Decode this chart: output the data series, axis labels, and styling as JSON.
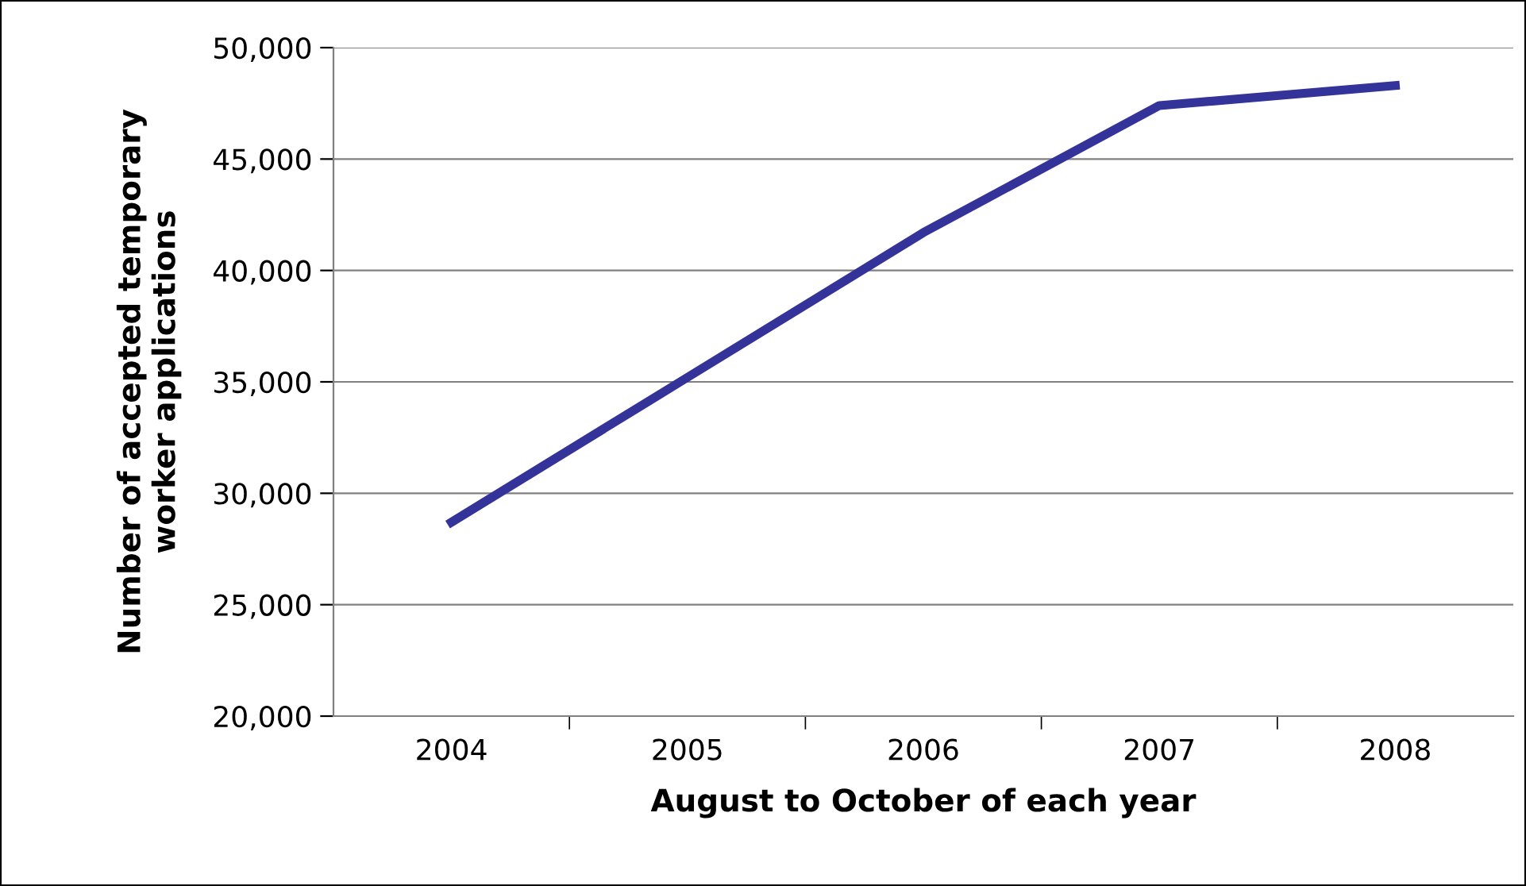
{
  "chart_data": {
    "type": "line",
    "xlabel": "August to October of each year",
    "ylabel": "Number of accepted temporary\nworker applications",
    "categories": [
      "2004",
      "2005",
      "2006",
      "2007",
      "2008"
    ],
    "series": [
      {
        "color": "#333399",
        "values": [
          28700,
          35200,
          41700,
          47400,
          48300
        ]
      }
    ],
    "ylim": [
      20000,
      50000
    ],
    "yticks": [
      {
        "value": 20000,
        "label": "20,000"
      },
      {
        "value": 25000,
        "label": "25,000"
      },
      {
        "value": 30000,
        "label": "30,000"
      },
      {
        "value": 35000,
        "label": "35,000"
      },
      {
        "value": 40000,
        "label": "40,000"
      },
      {
        "value": 45000,
        "label": "45,000"
      },
      {
        "value": 50000,
        "label": "50,000"
      }
    ],
    "grid": "y",
    "legend": false,
    "marker": "none",
    "line_style": "solid"
  }
}
